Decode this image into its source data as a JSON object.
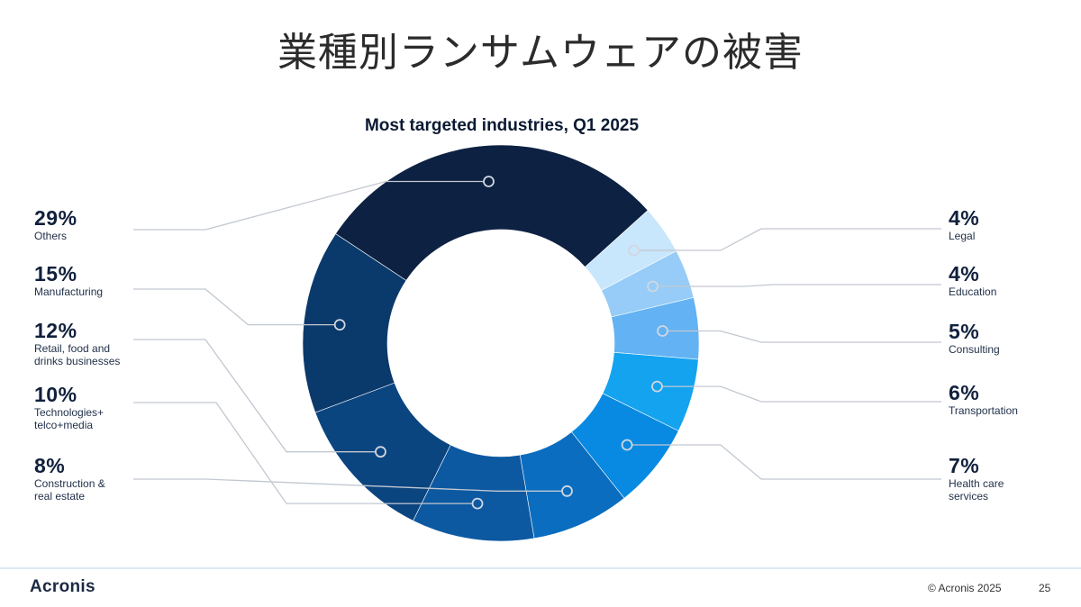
{
  "slide": {
    "title": "業種別ランサムウェアの被害",
    "logo": "Acronis",
    "copyright": "© Acronis 2025",
    "page_number": "25"
  },
  "chart_data": {
    "type": "pie",
    "title": "Most targeted industries, Q1 2025",
    "donut": true,
    "categories": [
      "Others",
      "Legal",
      "Education",
      "Consulting",
      "Transportation",
      "Health care services",
      "Construction & real estate",
      "Technologies+ telco+media",
      "Retail, food and drinks businesses",
      "Manufacturing"
    ],
    "values": [
      29,
      4,
      4,
      5,
      6,
      7,
      8,
      10,
      12,
      15
    ],
    "value_labels": [
      "29%",
      "4%",
      "4%",
      "5%",
      "6%",
      "7%",
      "8%",
      "10%",
      "12%",
      "15%"
    ],
    "display_names": [
      "Others",
      "Legal",
      "Education",
      "Consulting",
      "Transportation",
      "Health care\nservices",
      "Construction &\nreal estate",
      "Technologies+\ntelco+media",
      "Retail, food and\ndrinks businesses",
      "Manufacturing"
    ],
    "colors": [
      "#0d2142",
      "#c8e6fc",
      "#96ccf7",
      "#63b2f3",
      "#14a3ef",
      "#088ae3",
      "#0a6dbf",
      "#0c59a2",
      "#0b4580",
      "#0a396b"
    ],
    "legend_side": [
      "left",
      "right",
      "right",
      "right",
      "right",
      "right",
      "left",
      "left",
      "left",
      "left"
    ]
  }
}
